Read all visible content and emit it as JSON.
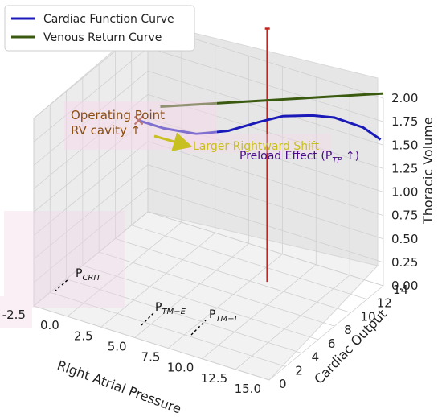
{
  "chart_data": {
    "type": "line",
    "projection": "3d",
    "grid": true,
    "legend": {
      "placement": "top-left",
      "entries": [
        {
          "label": "Cardiac Function Curve",
          "color": "#1a1ab8"
        },
        {
          "label": "Venous Return Curve",
          "color": "#3a5a10"
        }
      ]
    },
    "axes": {
      "x": {
        "label": "Right Atrial Pressure",
        "ticks": [
          "-2.5",
          "0.0",
          "2.5",
          "5.0",
          "7.5",
          "10.0",
          "12.5",
          "15.0"
        ],
        "lim": [
          -2.5,
          15
        ]
      },
      "y": {
        "label": "Cardiac Output",
        "ticks": [
          "0",
          "2",
          "4",
          "6",
          "8",
          "10",
          "12",
          "14"
        ],
        "lim": [
          0,
          14
        ]
      },
      "z": {
        "label": "Thoracic Volume",
        "ticks": [
          "0.00",
          "0.25",
          "0.50",
          "0.75",
          "1.00",
          "1.25",
          "1.50",
          "1.75",
          "2.00"
        ],
        "lim": [
          0,
          2
        ]
      }
    },
    "series": [
      {
        "name": "Cardiac Function Curve",
        "color": "#1a1ab8",
        "points": [
          {
            "x": -1.0,
            "y": 10.4,
            "z": 1.3
          },
          {
            "x": 0.5,
            "y": 11.0,
            "z": 1.24
          },
          {
            "x": 2.5,
            "y": 11.7,
            "z": 1.22
          },
          {
            "x": 4.5,
            "y": 12.3,
            "z": 1.3
          },
          {
            "x": 6.5,
            "y": 12.8,
            "z": 1.45
          },
          {
            "x": 8.0,
            "y": 13.2,
            "z": 1.55
          },
          {
            "x": 10.0,
            "y": 13.6,
            "z": 1.62
          },
          {
            "x": 11.5,
            "y": 13.8,
            "z": 1.65
          },
          {
            "x": 13.5,
            "y": 14.0,
            "z": 1.62
          },
          {
            "x": 14.8,
            "y": 14.0,
            "z": 1.55
          }
        ]
      },
      {
        "name": "Venous Return Curve",
        "color": "#3a5a10",
        "points": [
          {
            "x": 0,
            "y": 11.4,
            "z": 1.42
          },
          {
            "x": 15,
            "y": 14.0,
            "z": 2.05
          }
        ]
      }
    ],
    "vertical_line": {
      "color": "#c0261f",
      "x": 8.5,
      "y": 10.5,
      "z_top": 2.7
    },
    "operating_point": {
      "x": -1.0,
      "y": 10.4,
      "z": 1.3,
      "marker": "x"
    },
    "annotations": [
      {
        "id": "operating-point",
        "lines": [
          "Operating Point",
          "RV cavity ↑"
        ],
        "color": "#8b4d10"
      },
      {
        "id": "rightward-shift",
        "text": "Larger Rightward Shift",
        "color": "#c8c020"
      },
      {
        "id": "preload-effect",
        "text": "Preload Effect (P",
        "sub": "TP",
        "suffix": " ↑)",
        "color": "#4a0a8a"
      },
      {
        "id": "p-crit",
        "base": "P",
        "sub": "CRIT"
      },
      {
        "id": "p-tm-e",
        "base": "P",
        "sub": "TM−E"
      },
      {
        "id": "p-tm-i",
        "base": "P",
        "sub": "TM−I"
      }
    ]
  }
}
